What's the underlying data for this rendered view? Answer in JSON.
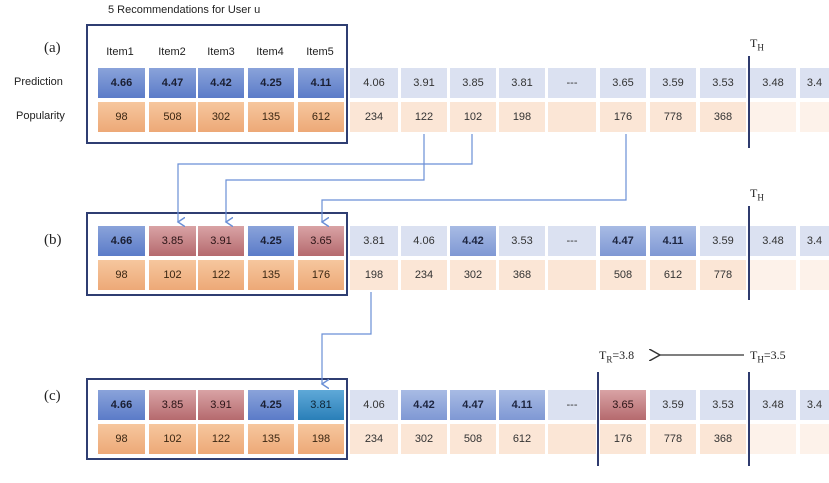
{
  "title": "5 Recommendations for User u",
  "row_labels": {
    "prediction": "Prediction",
    "popularity": "Popularity"
  },
  "item_headers": [
    "Item1",
    "Item2",
    "Item3",
    "Item4",
    "Item5"
  ],
  "panels": {
    "a": {
      "label": "(a)",
      "prediction": [
        "4.66",
        "4.47",
        "4.42",
        "4.25",
        "4.11",
        "4.06",
        "3.91",
        "3.85",
        "3.81",
        "---",
        "3.65",
        "3.59",
        "3.53",
        "3.48",
        "3.4"
      ],
      "popularity": [
        "98",
        "508",
        "302",
        "135",
        "612",
        "234",
        "122",
        "102",
        "198",
        "",
        "176",
        "778",
        "368",
        "",
        ""
      ]
    },
    "b": {
      "label": "(b)",
      "prediction": [
        "4.66",
        "3.85",
        "3.91",
        "4.25",
        "3.65",
        "3.81",
        "4.06",
        "4.42",
        "3.53",
        "---",
        "4.47",
        "4.11",
        "3.59",
        "3.48",
        "3.4"
      ],
      "popularity": [
        "98",
        "102",
        "122",
        "135",
        "176",
        "198",
        "234",
        "302",
        "368",
        "",
        "508",
        "612",
        "778",
        "",
        ""
      ]
    },
    "c": {
      "label": "(c)",
      "prediction": [
        "4.66",
        "3.85",
        "3.91",
        "4.25",
        "3.81",
        "4.06",
        "4.42",
        "4.47",
        "4.11",
        "---",
        "3.65",
        "3.59",
        "3.53",
        "3.48",
        "3.4"
      ],
      "popularity": [
        "98",
        "102",
        "122",
        "135",
        "198",
        "234",
        "302",
        "508",
        "612",
        "",
        "176",
        "778",
        "368",
        "",
        ""
      ]
    }
  },
  "thresholds": {
    "th_label": "T",
    "th_sub": "H",
    "tr_label": "T",
    "tr_sub": "R",
    "tr_value": "=3.8",
    "th_value": "=3.5"
  },
  "colors": {
    "box_border": "#2f3e72",
    "line": "#2f3b6e",
    "arrow": "#6a8fd6"
  }
}
